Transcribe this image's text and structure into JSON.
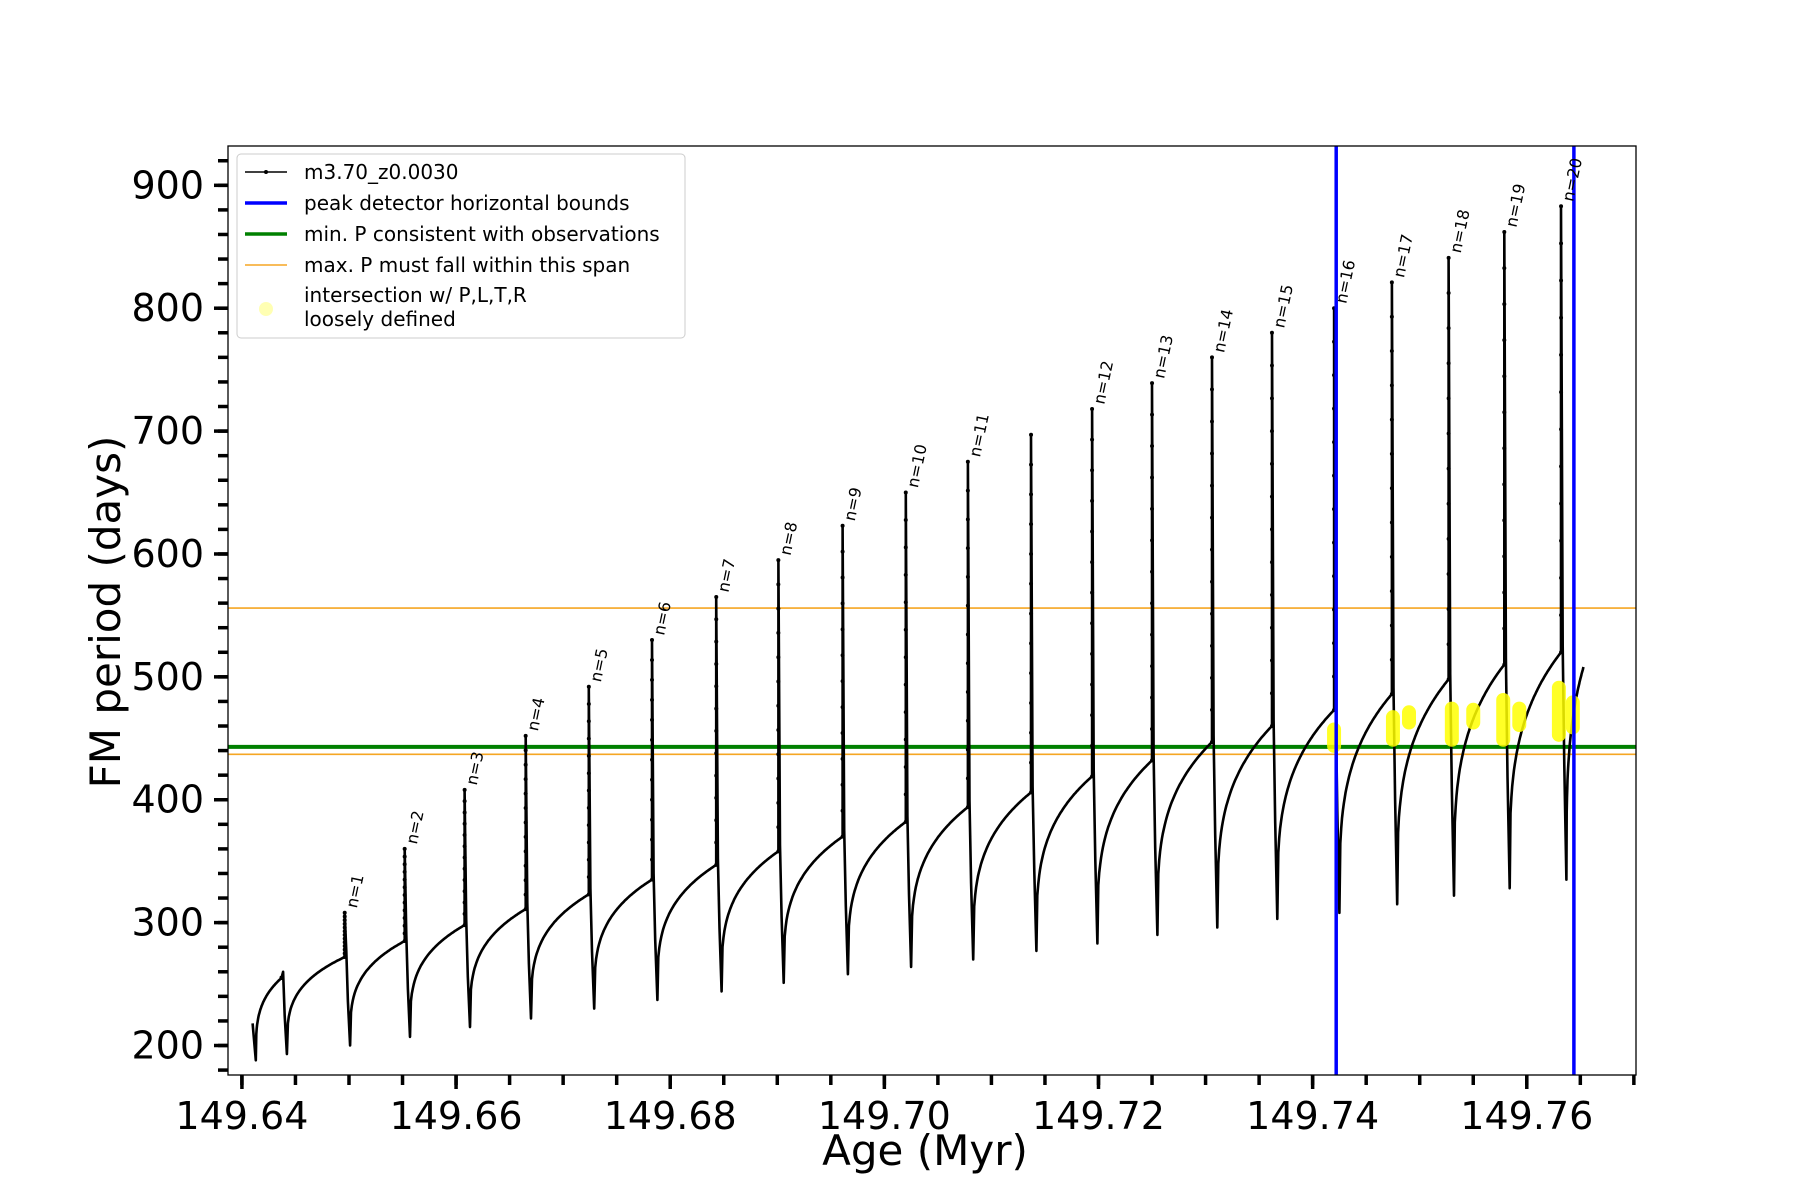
{
  "chart_data": {
    "type": "line",
    "xlabel": "Age (Myr)",
    "ylabel": "FM period (days)",
    "xlim": [
      149.6387,
      149.7702
    ],
    "ylim": [
      176,
      932
    ],
    "x_ticks": [
      149.64,
      149.66,
      149.68,
      149.7,
      149.72,
      149.74,
      149.76
    ],
    "x_tick_labels": [
      "149.64",
      "149.66",
      "149.68",
      "149.70",
      "149.72",
      "149.74",
      "149.76"
    ],
    "y_ticks": [
      200,
      300,
      400,
      500,
      600,
      700,
      800,
      900
    ],
    "y_tick_labels": [
      "200",
      "300",
      "400",
      "500",
      "600",
      "700",
      "800",
      "900"
    ],
    "grid": false,
    "legend_position": "top-left",
    "legend": [
      {
        "label": "m3.70_z0.0030",
        "color": "#000000",
        "kind": "line-marker"
      },
      {
        "label": "peak detector horizontal bounds",
        "color": "#0000ff",
        "kind": "thick-line"
      },
      {
        "label": "min. P consistent with observations",
        "color": "#008000",
        "kind": "thick-line"
      },
      {
        "label": "max. P must fall within this span",
        "color": "#f5a623",
        "kind": "thin-line"
      },
      {
        "label": "intersection w/ P,L,T,R",
        "label2": "loosely defined",
        "color": "#ffff80",
        "kind": "dot"
      }
    ],
    "series": [
      {
        "name": "m3.70_z0.0030",
        "color": "#000000",
        "start": {
          "x": 149.641,
          "y": 218
        },
        "cycles": [
          {
            "x": 149.6437,
            "plateau": 255,
            "peak": 255,
            "dip": 193,
            "label": ""
          },
          {
            "x": 149.6496,
            "plateau": 272,
            "peak": 308,
            "dip": 200,
            "label": "n=1"
          },
          {
            "x": 149.6552,
            "plateau": 285,
            "peak": 360,
            "dip": 207,
            "label": "n=2"
          },
          {
            "x": 149.6608,
            "plateau": 298,
            "peak": 408,
            "dip": 215,
            "label": "n=3"
          },
          {
            "x": 149.6665,
            "plateau": 311,
            "peak": 452,
            "dip": 222,
            "label": "n=4"
          },
          {
            "x": 149.6724,
            "plateau": 323,
            "peak": 492,
            "dip": 230,
            "label": "n=5"
          },
          {
            "x": 149.6783,
            "plateau": 335,
            "peak": 530,
            "dip": 237,
            "label": "n=6"
          },
          {
            "x": 149.6843,
            "plateau": 347,
            "peak": 565,
            "dip": 244,
            "label": "n=7"
          },
          {
            "x": 149.6901,
            "plateau": 358,
            "peak": 595,
            "dip": 251,
            "label": "n=8"
          },
          {
            "x": 149.6961,
            "plateau": 370,
            "peak": 623,
            "dip": 258,
            "label": "n=9"
          },
          {
            "x": 149.702,
            "plateau": 382,
            "peak": 650,
            "dip": 264,
            "label": "n=10"
          },
          {
            "x": 149.7078,
            "plateau": 394,
            "peak": 675,
            "dip": 270,
            "label": "n=11"
          },
          {
            "x": 149.7137,
            "plateau": 406,
            "peak": 697,
            "dip": 277,
            "label": ""
          },
          {
            "x": 149.7194,
            "plateau": 419,
            "peak": 718,
            "dip": 283,
            "label": "n=12"
          },
          {
            "x": 149.725,
            "plateau": 432,
            "peak": 739,
            "dip": 290,
            "label": "n=13"
          },
          {
            "x": 149.7306,
            "plateau": 447,
            "peak": 760,
            "dip": 296,
            "label": "n=14"
          },
          {
            "x": 149.7362,
            "plateau": 460,
            "peak": 780,
            "dip": 303,
            "label": "n=15"
          },
          {
            "x": 149.742,
            "plateau": 473,
            "peak": 800,
            "dip": 308,
            "label": "n=16"
          },
          {
            "x": 149.7474,
            "plateau": 486,
            "peak": 821,
            "dip": 315,
            "label": "n=17"
          },
          {
            "x": 149.7527,
            "plateau": 498,
            "peak": 841,
            "dip": 322,
            "label": "n=18"
          },
          {
            "x": 149.7579,
            "plateau": 510,
            "peak": 862,
            "dip": 328,
            "label": "n=19"
          },
          {
            "x": 149.7632,
            "plateau": 520,
            "peak": 883,
            "dip": 335,
            "label": "n=20"
          }
        ],
        "end": {
          "x": 149.7653,
          "y": 508
        }
      }
    ],
    "vertical_lines": [
      {
        "x": 149.7422,
        "color": "#0000ff"
      },
      {
        "x": 149.7644,
        "color": "#0000ff"
      }
    ],
    "horizontal_lines": [
      {
        "y": 443,
        "color": "#008000",
        "width": 4
      },
      {
        "y": 437,
        "color": "#f5a623",
        "width": 1.6
      },
      {
        "y": 556,
        "color": "#f5a623",
        "width": 1.6
      }
    ],
    "intersections": [
      {
        "x": 149.742,
        "y1": 443,
        "y2": 458
      },
      {
        "x": 149.7475,
        "y1": 448,
        "y2": 468
      },
      {
        "x": 149.749,
        "y1": 462,
        "y2": 472
      },
      {
        "x": 149.753,
        "y1": 448,
        "y2": 475
      },
      {
        "x": 149.755,
        "y1": 462,
        "y2": 474
      },
      {
        "x": 149.7578,
        "y1": 448,
        "y2": 482
      },
      {
        "x": 149.7593,
        "y1": 460,
        "y2": 475
      },
      {
        "x": 149.763,
        "y1": 452,
        "y2": 492
      },
      {
        "x": 149.7643,
        "y1": 458,
        "y2": 480
      }
    ]
  }
}
